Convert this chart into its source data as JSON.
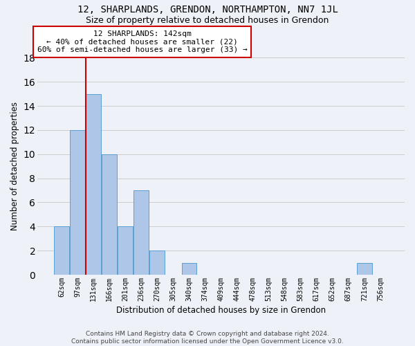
{
  "title": "12, SHARPLANDS, GRENDON, NORTHAMPTON, NN7 1JL",
  "subtitle": "Size of property relative to detached houses in Grendon",
  "xlabel": "Distribution of detached houses by size in Grendon",
  "ylabel": "Number of detached properties",
  "bins": [
    "62sqm",
    "97sqm",
    "131sqm",
    "166sqm",
    "201sqm",
    "236sqm",
    "270sqm",
    "305sqm",
    "340sqm",
    "374sqm",
    "409sqm",
    "444sqm",
    "478sqm",
    "513sqm",
    "548sqm",
    "583sqm",
    "617sqm",
    "652sqm",
    "687sqm",
    "721sqm",
    "756sqm"
  ],
  "values": [
    4,
    12,
    15,
    10,
    4,
    7,
    2,
    0,
    1,
    0,
    0,
    0,
    0,
    0,
    0,
    0,
    0,
    0,
    0,
    1,
    0
  ],
  "bar_color": "#aec6e8",
  "bar_edge_color": "#5a9fd4",
  "property_line_bin_index": 2,
  "property_line_color": "#cc0000",
  "annotation_text": "12 SHARPLANDS: 142sqm\n← 40% of detached houses are smaller (22)\n60% of semi-detached houses are larger (33) →",
  "annotation_box_color": "#ffffff",
  "annotation_box_edge": "#cc0000",
  "ylim": [
    0,
    18
  ],
  "yticks": [
    0,
    2,
    4,
    6,
    8,
    10,
    12,
    14,
    16,
    18
  ],
  "grid_color": "#cccccc",
  "background_color": "#eef2f8",
  "footer": "Contains HM Land Registry data © Crown copyright and database right 2024.\nContains public sector information licensed under the Open Government Licence v3.0.",
  "title_fontsize": 10,
  "subtitle_fontsize": 9,
  "xlabel_fontsize": 8.5,
  "ylabel_fontsize": 8.5,
  "tick_fontsize": 7,
  "annotation_fontsize": 8,
  "footer_fontsize": 6.5
}
